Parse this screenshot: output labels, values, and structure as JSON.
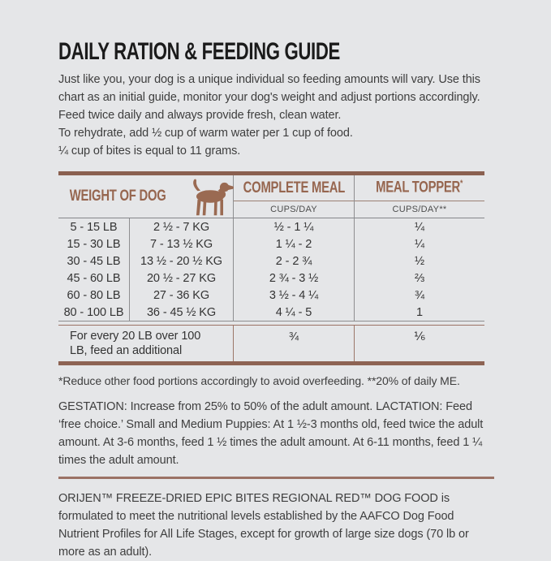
{
  "page": {
    "title": "DAILY RATION & FEEDING GUIDE",
    "intro": "Just like you, your dog is a unique individual so feeding amounts will vary. Use this chart as an initial guide, monitor your dog's weight and adjust portions accordingly. Feed twice daily and always provide fresh, clean water.",
    "rehydrate_note": "To rehydrate, add ½ cup of warm water per 1 cup of food.",
    "bites_note": "¼ cup of bites is equal to 11 grams."
  },
  "table": {
    "col_weight_header": "WEIGHT OF DOG",
    "dog_icon": "dog-silhouette",
    "col_meal_header": "COMPLETE MEAL",
    "col_topper_header": "MEAL TOPPER",
    "col_topper_mark": "*",
    "meal_subheader": "CUPS/DAY",
    "topper_subheader": "CUPS/DAY**",
    "rows": [
      {
        "lb": "5 - 15 LB",
        "kg": "2 ½ - 7 KG",
        "meal": "½ - 1 ¼",
        "topper": "¼"
      },
      {
        "lb": "15 - 30 LB",
        "kg": "7 - 13 ½ KG",
        "meal": "1 ¼ - 2",
        "topper": "¼"
      },
      {
        "lb": "30 - 45 LB",
        "kg": "13 ½ - 20 ½ KG",
        "meal": "2 - 2 ¾",
        "topper": "½"
      },
      {
        "lb": "45 - 60 LB",
        "kg": "20 ½ - 27 KG",
        "meal": "2 ¾ - 3 ½",
        "topper": "⅔"
      },
      {
        "lb": "60 - 80 LB",
        "kg": "27 - 36 KG",
        "meal": "3 ½ - 4 ¼",
        "topper": "¾"
      },
      {
        "lb": "80 - 100 LB",
        "kg": "36 - 45 ½ KG",
        "meal": "4 ¼ - 5",
        "topper": "1"
      }
    ],
    "extra_row": {
      "label": "For every 20 LB over 100 LB, feed an additional",
      "meal": "¾",
      "topper": "⅙"
    }
  },
  "notes": {
    "footnote": "*Reduce other food portions accordingly to avoid overfeeding. **20% of daily ME.",
    "life_stage": "GESTATION: Increase from 25% to 50% of the adult amount. LACTATION: Feed ‘free choice.’ Small and Medium Puppies: At 1 ½-3 months old, feed twice the adult amount. At 3-6 months, feed 1 ½ times the adult amount. At 6-11 months, feed 1 ¼ times the adult amount.",
    "aafco": "ORIJEN™ FREEZE-DRIED EPIC BITES REGIONAL RED™ DOG FOOD is formulated to meet the nutritional levels established by the AAFCO Dog Food Nutrient Profiles for All Life Stages, except for growth of large size dogs (70 lb or more as an adult)."
  },
  "colors": {
    "accent_brown": "#96664f",
    "rule_gray": "#8e8e90",
    "background": "#e5e6e8",
    "text": "#3b3b3b"
  }
}
